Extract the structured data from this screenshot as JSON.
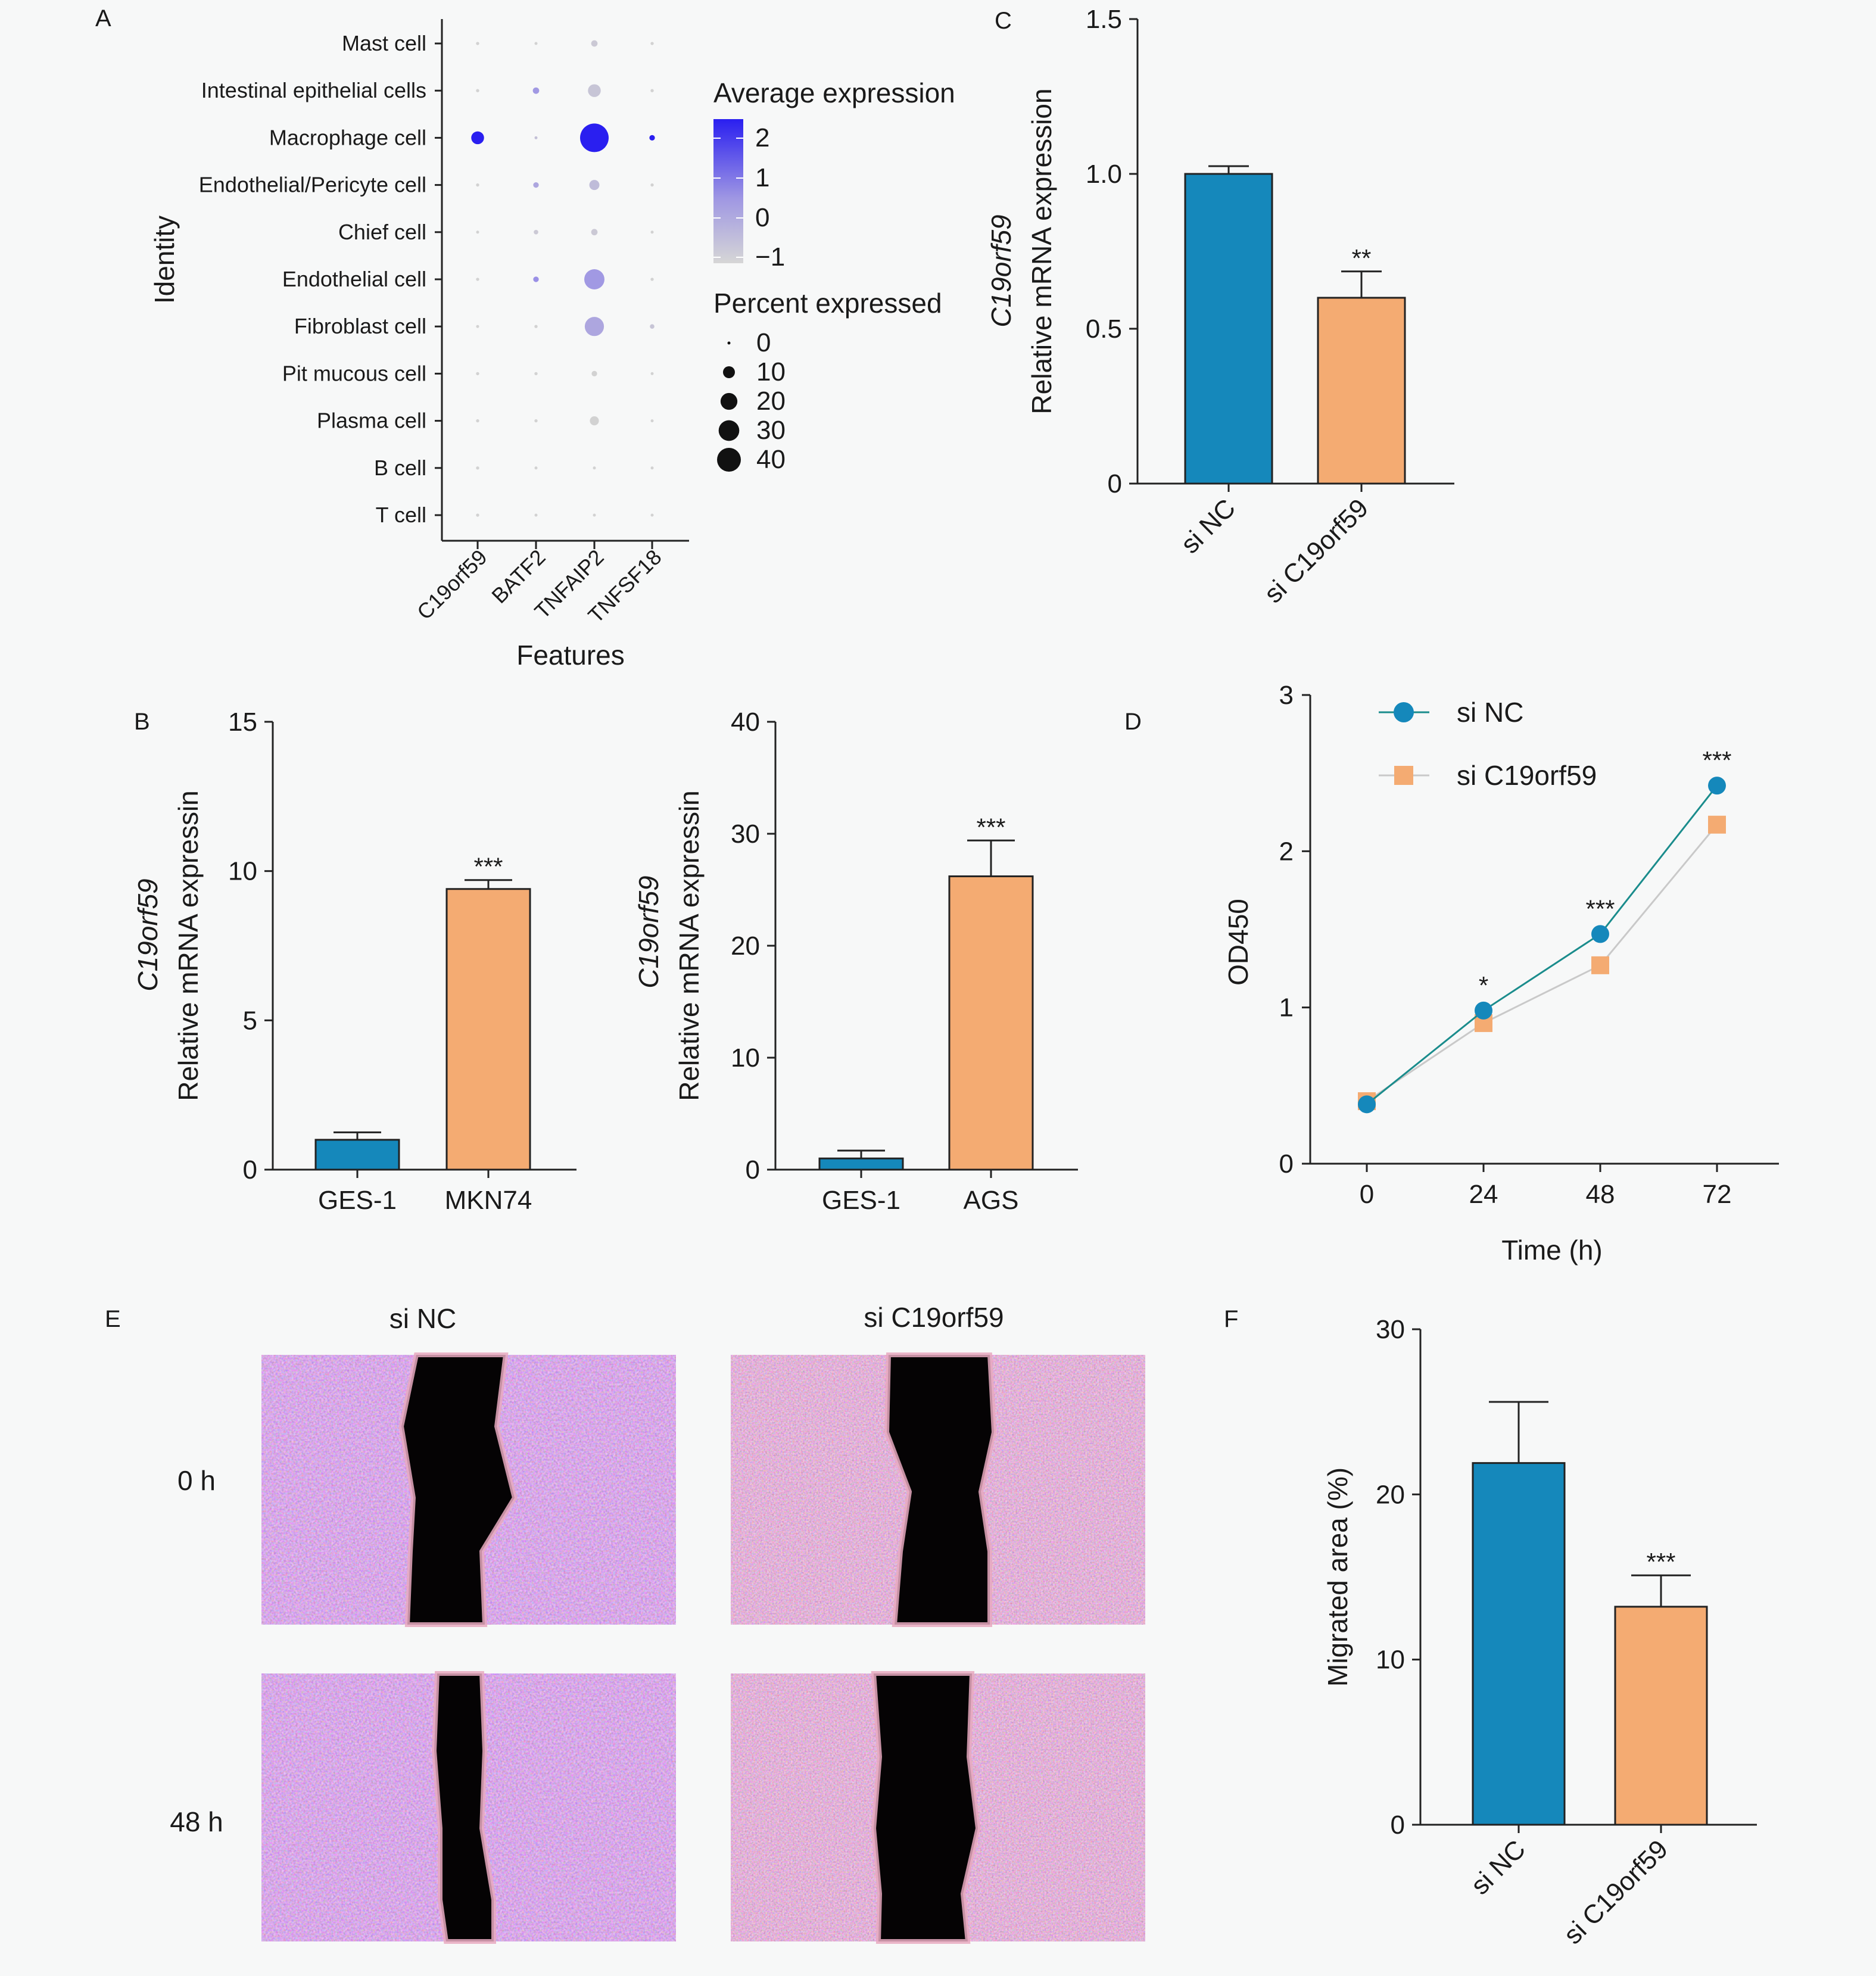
{
  "colors": {
    "teal": "#1588bb",
    "orange": "#f4ab72",
    "avg_low": "#cfcfcf",
    "avg_high": "#2a1ff0",
    "background": "#f7f8f8"
  },
  "panels": {
    "A": "A",
    "B": "B",
    "C": "C",
    "D": "D",
    "E": "E",
    "F": "F"
  },
  "chart_data": [
    {
      "panel": "A",
      "type": "scatter",
      "subtype": "dot-plot",
      "ylabel": "Identity",
      "xlabel": "Features",
      "features": [
        "C19orf59",
        "BATF2",
        "TNFAIP2",
        "TNFSF18"
      ],
      "identities": [
        "Mast cell",
        "Intestinal epithelial cells",
        "Macrophage cell",
        "Endothelial/Pericyte cell",
        "Chief cell",
        "Endothelial cell",
        "Fibroblast cell",
        "Pit mucous cell",
        "Plasma cell",
        "B cell",
        "T cell"
      ],
      "legend_avg_title": "Average expression",
      "legend_avg_ticks": [
        "2",
        "1",
        "0",
        "−1"
      ],
      "legend_pct_title": "Percent expressed",
      "legend_pct_ticks": [
        "0",
        "10",
        "20",
        "30",
        "40"
      ],
      "legend_pct_values": [
        0,
        10,
        20,
        30,
        40
      ],
      "points": [
        {
          "identity": "Mast cell",
          "feature": "C19orf59",
          "pct": 0.5,
          "avg": -1
        },
        {
          "identity": "Mast cell",
          "feature": "BATF2",
          "pct": 0.3,
          "avg": -1
        },
        {
          "identity": "Mast cell",
          "feature": "TNFAIP2",
          "pct": 2,
          "avg": -0.8
        },
        {
          "identity": "Mast cell",
          "feature": "TNFSF18",
          "pct": 0.5,
          "avg": -1
        },
        {
          "identity": "Intestinal epithelial cells",
          "feature": "C19orf59",
          "pct": 0.5,
          "avg": -1
        },
        {
          "identity": "Intestinal epithelial cells",
          "feature": "BATF2",
          "pct": 2,
          "avg": 0.3
        },
        {
          "identity": "Intestinal epithelial cells",
          "feature": "TNFAIP2",
          "pct": 8,
          "avg": -0.7
        },
        {
          "identity": "Intestinal epithelial cells",
          "feature": "TNFSF18",
          "pct": 0.5,
          "avg": -1
        },
        {
          "identity": "Macrophage cell",
          "feature": "C19orf59",
          "pct": 8,
          "avg": 2
        },
        {
          "identity": "Macrophage cell",
          "feature": "BATF2",
          "pct": 0.3,
          "avg": -0.6
        },
        {
          "identity": "Macrophage cell",
          "feature": "TNFAIP2",
          "pct": 40,
          "avg": 2
        },
        {
          "identity": "Macrophage cell",
          "feature": "TNFSF18",
          "pct": 1.5,
          "avg": 2
        },
        {
          "identity": "Endothelial/Pericyte cell",
          "feature": "C19orf59",
          "pct": 0.5,
          "avg": -1
        },
        {
          "identity": "Endothelial/Pericyte cell",
          "feature": "BATF2",
          "pct": 1.5,
          "avg": 0
        },
        {
          "identity": "Endothelial/Pericyte cell",
          "feature": "TNFAIP2",
          "pct": 5,
          "avg": -0.5
        },
        {
          "identity": "Endothelial/Pericyte cell",
          "feature": "TNFSF18",
          "pct": 0.5,
          "avg": -1
        },
        {
          "identity": "Chief cell",
          "feature": "C19orf59",
          "pct": 0.3,
          "avg": -1
        },
        {
          "identity": "Chief cell",
          "feature": "BATF2",
          "pct": 1,
          "avg": -0.8
        },
        {
          "identity": "Chief cell",
          "feature": "TNFAIP2",
          "pct": 2,
          "avg": -0.8
        },
        {
          "identity": "Chief cell",
          "feature": "TNFSF18",
          "pct": 0.3,
          "avg": -1
        },
        {
          "identity": "Endothelial cell",
          "feature": "C19orf59",
          "pct": 0.5,
          "avg": -1
        },
        {
          "identity": "Endothelial cell",
          "feature": "BATF2",
          "pct": 1.5,
          "avg": 0.5
        },
        {
          "identity": "Endothelial cell",
          "feature": "TNFAIP2",
          "pct": 20,
          "avg": 0.3
        },
        {
          "identity": "Endothelial cell",
          "feature": "TNFSF18",
          "pct": 0.5,
          "avg": -1
        },
        {
          "identity": "Fibroblast cell",
          "feature": "C19orf59",
          "pct": 0.3,
          "avg": -1
        },
        {
          "identity": "Fibroblast cell",
          "feature": "BATF2",
          "pct": 0.5,
          "avg": -1
        },
        {
          "identity": "Fibroblast cell",
          "feature": "TNFAIP2",
          "pct": 18,
          "avg": 0
        },
        {
          "identity": "Fibroblast cell",
          "feature": "TNFSF18",
          "pct": 1,
          "avg": -0.7
        },
        {
          "identity": "Pit mucous cell",
          "feature": "C19orf59",
          "pct": 0.5,
          "avg": -1
        },
        {
          "identity": "Pit mucous cell",
          "feature": "BATF2",
          "pct": 0.5,
          "avg": -1
        },
        {
          "identity": "Pit mucous cell",
          "feature": "TNFAIP2",
          "pct": 1.5,
          "avg": -1
        },
        {
          "identity": "Pit mucous cell",
          "feature": "TNFSF18",
          "pct": 0.3,
          "avg": -1
        },
        {
          "identity": "Plasma cell",
          "feature": "C19orf59",
          "pct": 0.5,
          "avg": -1
        },
        {
          "identity": "Plasma cell",
          "feature": "BATF2",
          "pct": 0.5,
          "avg": -1
        },
        {
          "identity": "Plasma cell",
          "feature": "TNFAIP2",
          "pct": 4,
          "avg": -1
        },
        {
          "identity": "Plasma cell",
          "feature": "TNFSF18",
          "pct": 0.3,
          "avg": -1
        },
        {
          "identity": "B cell",
          "feature": "C19orf59",
          "pct": 0.5,
          "avg": -1
        },
        {
          "identity": "B cell",
          "feature": "BATF2",
          "pct": 0.2,
          "avg": -1
        },
        {
          "identity": "B cell",
          "feature": "TNFAIP2",
          "pct": 0.3,
          "avg": -1
        },
        {
          "identity": "B cell",
          "feature": "TNFSF18",
          "pct": 0.3,
          "avg": -1
        },
        {
          "identity": "T cell",
          "feature": "C19orf59",
          "pct": 0.5,
          "avg": -1
        },
        {
          "identity": "T cell",
          "feature": "BATF2",
          "pct": 0.2,
          "avg": -1
        },
        {
          "identity": "T cell",
          "feature": "TNFAIP2",
          "pct": 0.3,
          "avg": -1
        },
        {
          "identity": "T cell",
          "feature": "TNFSF18",
          "pct": 0.3,
          "avg": -1
        }
      ]
    },
    {
      "panel": "B-left",
      "type": "bar",
      "categories": [
        "GES-1",
        "MKN74"
      ],
      "values": [
        1.0,
        9.4
      ],
      "errors": [
        0.25,
        0.3
      ],
      "significance": [
        "",
        "***"
      ],
      "ylabel_gene": "C19orf59",
      "ylabel": "Relative mRNA expressin",
      "ylim": [
        0,
        15
      ],
      "yticks": [
        0,
        5,
        10,
        15
      ]
    },
    {
      "panel": "B-right",
      "type": "bar",
      "categories": [
        "GES-1",
        "AGS"
      ],
      "values": [
        1.0,
        26.2
      ],
      "errors": [
        0.7,
        3.2
      ],
      "significance": [
        "",
        "***"
      ],
      "ylabel_gene": "C19orf59",
      "ylabel": "Relative mRNA expressin",
      "ylim": [
        0,
        40
      ],
      "yticks": [
        0,
        10,
        20,
        30,
        40
      ]
    },
    {
      "panel": "C",
      "type": "bar",
      "categories": [
        "si NC",
        "si C19orf59"
      ],
      "values": [
        1.0,
        0.6
      ],
      "errors": [
        0.025,
        0.085
      ],
      "significance": [
        "",
        "**"
      ],
      "ylabel_gene": "C19orf59",
      "ylabel": "Relative mRNA expression",
      "ylim": [
        0,
        1.5
      ],
      "yticks": [
        "0",
        "0.5",
        "1.0",
        "1.5"
      ]
    },
    {
      "panel": "D",
      "type": "line",
      "x": [
        0,
        24,
        48,
        72
      ],
      "xlabel": "Time (h)",
      "ylabel": "OD450",
      "ylim": [
        0,
        3
      ],
      "yticks": [
        0,
        1,
        2,
        3
      ],
      "series": [
        {
          "name": "si NC",
          "values": [
            0.38,
            0.98,
            1.47,
            2.42
          ],
          "color": "#1588bb",
          "marker": "circle"
        },
        {
          "name": "si C19orf59",
          "values": [
            0.4,
            0.9,
            1.27,
            2.17
          ],
          "color": "#f4ab72",
          "marker": "square"
        }
      ],
      "significance": [
        "",
        "*",
        "***",
        "***"
      ],
      "legend": "top-left"
    },
    {
      "panel": "F",
      "type": "bar",
      "categories": [
        "si NC",
        "si C19orf59"
      ],
      "values": [
        21.9,
        13.2
      ],
      "errors": [
        3.7,
        1.9
      ],
      "significance": [
        "",
        "***"
      ],
      "ylabel": "Migrated area (%)",
      "ylim": [
        0,
        30
      ],
      "yticks": [
        0,
        10,
        20,
        30
      ]
    }
  ],
  "panel_e": {
    "columns": [
      "si NC",
      "si C19orf59"
    ],
    "rows": [
      "0 h",
      "48 h"
    ]
  }
}
